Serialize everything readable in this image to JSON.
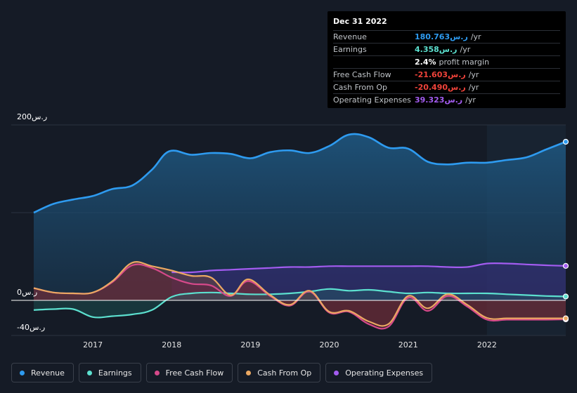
{
  "tooltip": {
    "date": "Dec 31 2022",
    "rows": [
      {
        "label": "Revenue",
        "value": "180.763ر.س",
        "unit": "/yr",
        "color": "#2e9bf0"
      },
      {
        "label": "Earnings",
        "value": "4.358ر.س",
        "unit": "/yr",
        "color": "#5ce0cf"
      },
      {
        "label": "",
        "value": "2.4%",
        "unit": "profit margin",
        "color": "#ffffff"
      },
      {
        "label": "Free Cash Flow",
        "value": "-21.603ر.س",
        "unit": "/yr",
        "color": "#f0433a"
      },
      {
        "label": "Cash From Op",
        "value": "-20.490ر.س",
        "unit": "/yr",
        "color": "#f0433a"
      },
      {
        "label": "Operating Expenses",
        "value": "39.323ر.س",
        "unit": "/yr",
        "color": "#a35cf0"
      }
    ]
  },
  "legend": [
    {
      "label": "Revenue",
      "color": "#2e9bf0"
    },
    {
      "label": "Earnings",
      "color": "#5ce0cf"
    },
    {
      "label": "Free Cash Flow",
      "color": "#d6498a"
    },
    {
      "label": "Cash From Op",
      "color": "#eba862"
    },
    {
      "label": "Operating Expenses",
      "color": "#a35cf0"
    }
  ],
  "chart_data": {
    "type": "area",
    "title": "",
    "xlabel": "",
    "ylabel": "",
    "ylim": [
      -40,
      200
    ],
    "y_tick_labels": [
      "200ر.س",
      "0ر.س",
      "-40ر.س"
    ],
    "y_ticks": [
      200,
      0,
      -40
    ],
    "x_ticks": [
      2017,
      2018,
      2019,
      2020,
      2021,
      2022
    ],
    "x_tick_labels": [
      "2017",
      "2018",
      "2019",
      "2020",
      "2021",
      "2022"
    ],
    "xlim": [
      2016.25,
      2023.0
    ],
    "highlight_from": 2022.0,
    "series": [
      {
        "name": "Revenue",
        "color": "#2e9bf0",
        "x": [
          2016.25,
          2016.5,
          2016.75,
          2017.0,
          2017.25,
          2017.5,
          2017.75,
          2017.97,
          2018.25,
          2018.5,
          2018.75,
          2019.0,
          2019.25,
          2019.5,
          2019.75,
          2020.0,
          2020.25,
          2020.5,
          2020.75,
          2021.0,
          2021.25,
          2021.5,
          2021.75,
          2022.0,
          2022.25,
          2022.5,
          2022.75,
          2023.0
        ],
        "y": [
          100,
          110,
          115,
          119,
          127,
          131,
          149,
          170,
          166,
          168,
          167,
          162,
          169,
          171,
          168,
          176,
          189,
          186,
          174,
          173,
          158,
          155,
          157,
          157,
          160,
          163,
          172,
          180.8
        ]
      },
      {
        "name": "Earnings",
        "color": "#5ce0cf",
        "x": [
          2016.25,
          2016.5,
          2016.75,
          2017.0,
          2017.25,
          2017.5,
          2017.75,
          2018.0,
          2018.25,
          2018.5,
          2018.75,
          2019.0,
          2019.25,
          2019.5,
          2019.75,
          2020.0,
          2020.25,
          2020.5,
          2020.75,
          2021.0,
          2021.25,
          2021.5,
          2021.75,
          2022.0,
          2022.25,
          2022.5,
          2022.75,
          2023.0
        ],
        "y": [
          -11,
          -10,
          -10,
          -19,
          -18,
          -16,
          -11,
          4,
          8,
          9,
          8,
          7,
          7,
          8,
          10,
          13,
          11,
          12,
          10,
          8,
          9,
          8,
          8,
          8,
          7,
          6,
          5,
          4.4
        ]
      },
      {
        "name": "Free Cash Flow",
        "color": "#d6498a",
        "x": [
          2016.25,
          2016.5,
          2016.75,
          2017.0,
          2017.25,
          2017.5,
          2017.75,
          2018.0,
          2018.25,
          2018.5,
          2018.75,
          2018.97,
          2019.25,
          2019.5,
          2019.75,
          2020.0,
          2020.25,
          2020.5,
          2020.75,
          2021.0,
          2021.25,
          2021.5,
          2021.75,
          2022.0,
          2022.25,
          2022.5,
          2022.75,
          2023.0
        ],
        "y": [
          14,
          9,
          8,
          9,
          21,
          40,
          37,
          26,
          19,
          17,
          5,
          22,
          5,
          -6,
          10,
          -14,
          -13,
          -27,
          -30,
          3,
          -12,
          5,
          -7,
          -22,
          -22,
          -22,
          -22,
          -21.6
        ]
      },
      {
        "name": "Cash From Op",
        "color": "#eba862",
        "x": [
          2016.25,
          2016.5,
          2016.75,
          2017.0,
          2017.25,
          2017.5,
          2017.75,
          2018.0,
          2018.25,
          2018.5,
          2018.75,
          2018.97,
          2019.25,
          2019.5,
          2019.75,
          2020.0,
          2020.25,
          2020.5,
          2020.75,
          2021.0,
          2021.25,
          2021.5,
          2021.75,
          2022.0,
          2022.25,
          2022.5,
          2022.75,
          2023.0
        ],
        "y": [
          14,
          9,
          8,
          9,
          22,
          43,
          39,
          34,
          28,
          26,
          6,
          24,
          6,
          -5,
          11,
          -13,
          -12,
          -24,
          -27,
          5,
          -9,
          7,
          -5,
          -20,
          -20.5,
          -20.5,
          -20.5,
          -20.5
        ]
      },
      {
        "name": "Operating Expenses",
        "color": "#a35cf0",
        "x": [
          2018.0,
          2018.25,
          2018.5,
          2018.75,
          2019.0,
          2019.25,
          2019.5,
          2019.75,
          2020.0,
          2020.25,
          2020.5,
          2020.75,
          2021.0,
          2021.25,
          2021.5,
          2021.75,
          2022.0,
          2022.25,
          2022.5,
          2022.75,
          2023.0
        ],
        "y": [
          32,
          32,
          34,
          35,
          36,
          37,
          38,
          38,
          39,
          39,
          39,
          39,
          39,
          39,
          38,
          38,
          42,
          42,
          41,
          40,
          39.3
        ]
      }
    ]
  }
}
